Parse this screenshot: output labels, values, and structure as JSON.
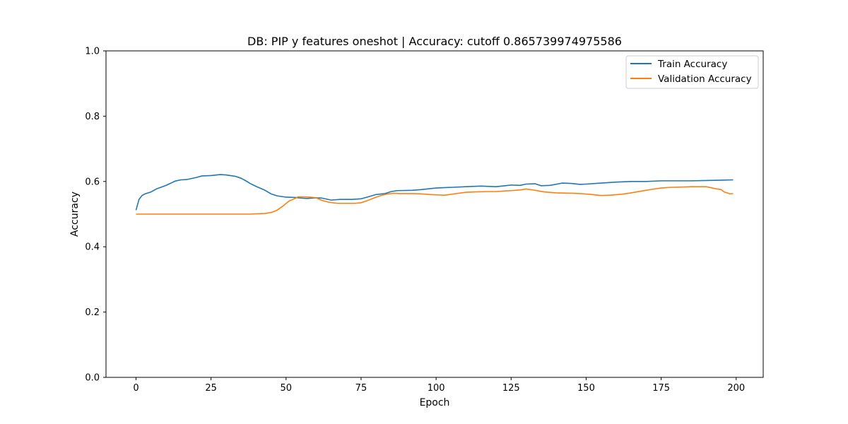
{
  "chart_data": {
    "type": "line",
    "title": "DB: PIP y features oneshot | Accuracy: cutoff 0.865739974975586",
    "xlabel": "Epoch",
    "ylabel": "Accuracy",
    "xlim": [
      -10,
      209
    ],
    "ylim": [
      0,
      1
    ],
    "xticks": [
      0,
      25,
      50,
      75,
      100,
      125,
      150,
      175,
      200
    ],
    "xtick_labels": [
      "0",
      "25",
      "50",
      "75",
      "100",
      "125",
      "150",
      "175",
      "200"
    ],
    "yticks": [
      0.0,
      0.2,
      0.4,
      0.6,
      0.8,
      1.0
    ],
    "ytick_labels": [
      "0.0",
      "0.2",
      "0.4",
      "0.6",
      "0.8",
      "1.0"
    ],
    "grid": false,
    "legend": "top-right",
    "series": [
      {
        "name": "Train Accuracy",
        "color": "#1f77b4",
        "points": [
          [
            0,
            0.512
          ],
          [
            1,
            0.545
          ],
          [
            2,
            0.557
          ],
          [
            3,
            0.562
          ],
          [
            5,
            0.568
          ],
          [
            7,
            0.578
          ],
          [
            10,
            0.588
          ],
          [
            13,
            0.601
          ],
          [
            15,
            0.605
          ],
          [
            17,
            0.606
          ],
          [
            20,
            0.612
          ],
          [
            22,
            0.617
          ],
          [
            25,
            0.618
          ],
          [
            28,
            0.621
          ],
          [
            30,
            0.62
          ],
          [
            33,
            0.616
          ],
          [
            35,
            0.61
          ],
          [
            37,
            0.6
          ],
          [
            38,
            0.594
          ],
          [
            40,
            0.585
          ],
          [
            43,
            0.573
          ],
          [
            45,
            0.562
          ],
          [
            47,
            0.556
          ],
          [
            50,
            0.552
          ],
          [
            53,
            0.551
          ],
          [
            55,
            0.549
          ],
          [
            57,
            0.548
          ],
          [
            60,
            0.55
          ],
          [
            62,
            0.549
          ],
          [
            65,
            0.543
          ],
          [
            68,
            0.545
          ],
          [
            72,
            0.545
          ],
          [
            75,
            0.547
          ],
          [
            77,
            0.552
          ],
          [
            80,
            0.56
          ],
          [
            83,
            0.563
          ],
          [
            85,
            0.569
          ],
          [
            87,
            0.572
          ],
          [
            92,
            0.573
          ],
          [
            95,
            0.575
          ],
          [
            100,
            0.58
          ],
          [
            105,
            0.582
          ],
          [
            110,
            0.584
          ],
          [
            115,
            0.586
          ],
          [
            120,
            0.584
          ],
          [
            123,
            0.587
          ],
          [
            125,
            0.589
          ],
          [
            128,
            0.588
          ],
          [
            130,
            0.592
          ],
          [
            133,
            0.593
          ],
          [
            135,
            0.587
          ],
          [
            138,
            0.588
          ],
          [
            142,
            0.595
          ],
          [
            145,
            0.594
          ],
          [
            148,
            0.591
          ],
          [
            150,
            0.592
          ],
          [
            155,
            0.595
          ],
          [
            160,
            0.598
          ],
          [
            165,
            0.6
          ],
          [
            170,
            0.6
          ],
          [
            175,
            0.602
          ],
          [
            180,
            0.602
          ],
          [
            185,
            0.602
          ],
          [
            190,
            0.603
          ],
          [
            195,
            0.604
          ],
          [
            199,
            0.605
          ]
        ]
      },
      {
        "name": "Validation Accuracy",
        "color": "#ff7f0e",
        "points": [
          [
            0,
            0.5
          ],
          [
            10,
            0.5
          ],
          [
            20,
            0.5
          ],
          [
            30,
            0.5
          ],
          [
            38,
            0.5
          ],
          [
            40,
            0.501
          ],
          [
            43,
            0.502
          ],
          [
            45,
            0.505
          ],
          [
            47,
            0.512
          ],
          [
            49,
            0.525
          ],
          [
            51,
            0.54
          ],
          [
            53,
            0.548
          ],
          [
            54,
            0.553
          ],
          [
            56,
            0.553
          ],
          [
            58,
            0.552
          ],
          [
            60,
            0.55
          ],
          [
            62,
            0.542
          ],
          [
            64,
            0.537
          ],
          [
            67,
            0.533
          ],
          [
            70,
            0.533
          ],
          [
            73,
            0.533
          ],
          [
            75,
            0.535
          ],
          [
            77,
            0.541
          ],
          [
            80,
            0.552
          ],
          [
            82,
            0.558
          ],
          [
            84,
            0.562
          ],
          [
            86,
            0.564
          ],
          [
            88,
            0.563
          ],
          [
            92,
            0.563
          ],
          [
            95,
            0.562
          ],
          [
            98,
            0.56
          ],
          [
            100,
            0.559
          ],
          [
            103,
            0.558
          ],
          [
            106,
            0.562
          ],
          [
            110,
            0.567
          ],
          [
            113,
            0.568
          ],
          [
            117,
            0.569
          ],
          [
            120,
            0.569
          ],
          [
            123,
            0.571
          ],
          [
            125,
            0.572
          ],
          [
            128,
            0.574
          ],
          [
            130,
            0.577
          ],
          [
            133,
            0.573
          ],
          [
            136,
            0.568
          ],
          [
            140,
            0.565
          ],
          [
            145,
            0.564
          ],
          [
            148,
            0.563
          ],
          [
            152,
            0.56
          ],
          [
            155,
            0.557
          ],
          [
            158,
            0.558
          ],
          [
            162,
            0.561
          ],
          [
            165,
            0.565
          ],
          [
            168,
            0.57
          ],
          [
            172,
            0.576
          ],
          [
            175,
            0.58
          ],
          [
            178,
            0.582
          ],
          [
            182,
            0.583
          ],
          [
            185,
            0.584
          ],
          [
            188,
            0.584
          ],
          [
            190,
            0.584
          ],
          [
            193,
            0.578
          ],
          [
            195,
            0.575
          ],
          [
            196,
            0.568
          ],
          [
            198,
            0.562
          ],
          [
            199,
            0.563
          ]
        ]
      }
    ]
  }
}
